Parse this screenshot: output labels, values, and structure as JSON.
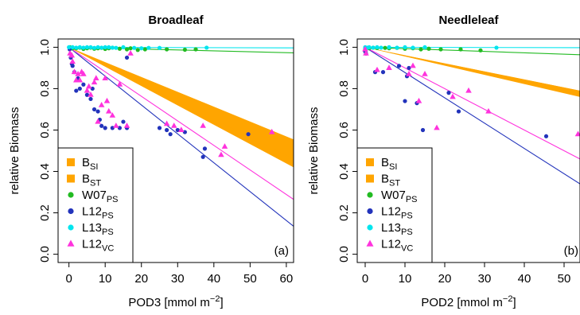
{
  "chart_data": [
    {
      "type": "scatter",
      "title": "Broadleaf",
      "panel_label": "(a)",
      "xlabel": {
        "main": "POD3 [mmol m",
        "sup": "−2",
        "end": "]"
      },
      "ylabel": "relative Biomass",
      "xlim": [
        -3,
        62
      ],
      "ylim": [
        -0.04,
        1.04
      ],
      "xticks": [
        0,
        10,
        20,
        30,
        40,
        50,
        60
      ],
      "yticks": [
        0.0,
        0.2,
        0.4,
        0.6,
        0.8,
        1.0
      ],
      "ytick_labels": [
        "0.0",
        "0.2",
        "0.4",
        "0.6",
        "0.8",
        "1.0"
      ],
      "legend_position": "bottom-left",
      "bands": [
        {
          "name": "B",
          "sub": "SI",
          "color": "#ffa500",
          "points": [
            [
              0,
              1.0
            ],
            [
              62,
              0.555
            ],
            [
              62,
              0.42
            ],
            [
              0,
              1.0
            ]
          ]
        },
        {
          "name": "B",
          "sub": "ST",
          "color": "#ffa500",
          "points": [
            [
              0,
              1.0
            ],
            [
              62,
              0.46
            ],
            [
              62,
              0.42
            ],
            [
              0,
              1.0
            ]
          ]
        }
      ],
      "lines": [
        {
          "series": "W07",
          "color": "#22bb22",
          "x": [
            0,
            62
          ],
          "y": [
            1.0,
            0.973
          ]
        },
        {
          "series": "L12",
          "color": "#2233bb",
          "x": [
            0,
            62
          ],
          "y": [
            1.0,
            0.135
          ]
        },
        {
          "series": "L13",
          "color": "#00e5ee",
          "x": [
            0,
            62
          ],
          "y": [
            1.0,
            0.997
          ]
        },
        {
          "series": "L12VC",
          "color": "#ff33dd",
          "x": [
            0,
            62
          ],
          "y": [
            1.0,
            0.265
          ]
        }
      ],
      "series": [
        {
          "name": "W07",
          "sub": "PS",
          "color": "#22bb22",
          "marker": "circle",
          "points": [
            [
              0.3,
              1.0
            ],
            [
              1,
              0.995
            ],
            [
              2,
              0.995
            ],
            [
              3,
              0.998
            ],
            [
              4,
              0.992
            ],
            [
              5,
              0.995
            ],
            [
              6,
              0.998
            ],
            [
              7,
              0.993
            ],
            [
              8,
              0.995
            ],
            [
              9,
              0.997
            ],
            [
              10,
              0.992
            ],
            [
              11,
              0.995
            ],
            [
              12,
              0.998
            ],
            [
              14,
              0.993
            ],
            [
              16,
              0.99
            ],
            [
              17,
              0.995
            ],
            [
              19,
              0.987
            ],
            [
              21,
              0.99
            ],
            [
              27,
              0.99
            ],
            [
              32,
              0.988
            ],
            [
              35,
              0.99
            ]
          ]
        },
        {
          "name": "L12",
          "sub": "PS",
          "color": "#2233bb",
          "marker": "circle",
          "points": [
            [
              0.2,
              0.99
            ],
            [
              0.5,
              0.95
            ],
            [
              0.8,
              0.92
            ],
            [
              1,
              0.91
            ],
            [
              1.5,
              0.88
            ],
            [
              2,
              0.79
            ],
            [
              2.5,
              0.85
            ],
            [
              3,
              0.8
            ],
            [
              4,
              0.82
            ],
            [
              5,
              0.77
            ],
            [
              6,
              0.75
            ],
            [
              6.5,
              0.8
            ],
            [
              7,
              0.7
            ],
            [
              8,
              0.69
            ],
            [
              8.5,
              0.65
            ],
            [
              9,
              0.62
            ],
            [
              10,
              0.61
            ],
            [
              12,
              0.61
            ],
            [
              14,
              0.61
            ],
            [
              15,
              0.64
            ],
            [
              16,
              0.61
            ],
            [
              16,
              0.95
            ],
            [
              25,
              0.61
            ],
            [
              27,
              0.6
            ],
            [
              28,
              0.58
            ],
            [
              30,
              0.6
            ],
            [
              32,
              0.59
            ],
            [
              37,
              0.47
            ],
            [
              37.5,
              0.51
            ],
            [
              49.5,
              0.58
            ]
          ]
        },
        {
          "name": "L13",
          "sub": "PS",
          "color": "#00e5ee",
          "marker": "circle",
          "points": [
            [
              0,
              1.0
            ],
            [
              1,
              1.0
            ],
            [
              2,
              0.998
            ],
            [
              3,
              1.0
            ],
            [
              4,
              0.998
            ],
            [
              5,
              1.0
            ],
            [
              6,
              1.0
            ],
            [
              7,
              0.997
            ],
            [
              8,
              1.0
            ],
            [
              9,
              0.998
            ],
            [
              10,
              1.0
            ],
            [
              11,
              1.0
            ],
            [
              12,
              0.998
            ],
            [
              13,
              0.997
            ],
            [
              15,
              1.0
            ],
            [
              18,
              0.997
            ],
            [
              20,
              0.995
            ],
            [
              22,
              0.997
            ],
            [
              25,
              0.997
            ],
            [
              38,
              0.998
            ]
          ]
        },
        {
          "name": "L12",
          "sub": "VC",
          "color": "#ff33dd",
          "marker": "triangle",
          "points": [
            [
              0.3,
              0.97
            ],
            [
              0.8,
              0.96
            ],
            [
              1,
              0.93
            ],
            [
              1.5,
              0.88
            ],
            [
              2,
              0.84
            ],
            [
              2.5,
              0.87
            ],
            [
              3,
              0.84
            ],
            [
              3.5,
              0.88
            ],
            [
              4,
              0.87
            ],
            [
              5,
              0.79
            ],
            [
              5.5,
              0.81
            ],
            [
              6,
              0.77
            ],
            [
              7,
              0.83
            ],
            [
              7.5,
              0.85
            ],
            [
              8,
              0.64
            ],
            [
              9,
              0.72
            ],
            [
              10,
              0.85
            ],
            [
              10.5,
              0.74
            ],
            [
              11,
              0.69
            ],
            [
              12,
              0.67
            ],
            [
              13,
              0.62
            ],
            [
              14,
              0.82
            ],
            [
              16,
              0.62
            ],
            [
              17,
              0.97
            ],
            [
              27,
              0.63
            ],
            [
              29,
              0.62
            ],
            [
              31,
              0.6
            ],
            [
              37,
              0.62
            ],
            [
              42,
              0.48
            ],
            [
              43,
              0.52
            ],
            [
              56,
              0.59
            ]
          ]
        }
      ]
    },
    {
      "type": "scatter",
      "title": "Needleleaf",
      "panel_label": "(b)",
      "xlabel": {
        "main": "POD2 [mmol m",
        "sup": "−2",
        "end": "]"
      },
      "ylabel": "relative Biomass",
      "xlim": [
        -2,
        54
      ],
      "ylim": [
        -0.04,
        1.04
      ],
      "xticks": [
        0,
        10,
        20,
        30,
        40,
        50
      ],
      "yticks": [
        0.0,
        0.2,
        0.4,
        0.6,
        0.8,
        1.0
      ],
      "ytick_labels": [
        "0.0",
        "0.2",
        "0.4",
        "0.6",
        "0.8",
        "1.0"
      ],
      "legend_position": "bottom-left",
      "bands": [
        {
          "name": "B",
          "sub": "SI",
          "color": "#ffa500",
          "points": [
            [
              0,
              1.0
            ],
            [
              54,
              0.79
            ],
            [
              54,
              0.76
            ],
            [
              0,
              1.0
            ]
          ]
        },
        {
          "name": "B",
          "sub": "ST",
          "color": "#ffa500",
          "points": [
            [
              0,
              1.0
            ],
            [
              54,
              0.79
            ],
            [
              54,
              0.765
            ],
            [
              0,
              1.0
            ]
          ]
        }
      ],
      "lines": [
        {
          "series": "W07",
          "color": "#22bb22",
          "x": [
            0,
            54
          ],
          "y": [
            1.0,
            0.964
          ]
        },
        {
          "series": "L12",
          "color": "#2233bb",
          "x": [
            0,
            54
          ],
          "y": [
            1.0,
            0.34
          ]
        },
        {
          "series": "L13",
          "color": "#00e5ee",
          "x": [
            0,
            54
          ],
          "y": [
            1.0,
            0.998
          ]
        },
        {
          "series": "L12VC",
          "color": "#ff33dd",
          "x": [
            0,
            54
          ],
          "y": [
            1.0,
            0.46
          ]
        }
      ],
      "series": [
        {
          "name": "W07",
          "sub": "PS",
          "color": "#22bb22",
          "marker": "circle",
          "points": [
            [
              0,
              0.99
            ],
            [
              1,
              0.995
            ],
            [
              2,
              0.998
            ],
            [
              3,
              0.996
            ],
            [
              5,
              0.997
            ],
            [
              6,
              0.995
            ],
            [
              8,
              0.997
            ],
            [
              10,
              0.993
            ],
            [
              12,
              0.995
            ],
            [
              14,
              0.99
            ],
            [
              16,
              0.993
            ],
            [
              19,
              0.99
            ],
            [
              24,
              0.99
            ],
            [
              29,
              0.985
            ]
          ]
        },
        {
          "name": "L12",
          "sub": "PS",
          "color": "#2233bb",
          "marker": "circle",
          "points": [
            [
              0,
              0.98
            ],
            [
              0.2,
              0.97
            ],
            [
              2.5,
              0.88
            ],
            [
              4.5,
              0.88
            ],
            [
              8.5,
              0.91
            ],
            [
              10,
              0.74
            ],
            [
              10.5,
              0.86
            ],
            [
              11,
              0.9
            ],
            [
              13,
              0.73
            ],
            [
              14.5,
              0.6
            ],
            [
              21,
              0.78
            ],
            [
              23.5,
              0.69
            ],
            [
              45.5,
              0.57
            ]
          ]
        },
        {
          "name": "L13",
          "sub": "PS",
          "color": "#00e5ee",
          "marker": "circle",
          "points": [
            [
              0,
              1.0
            ],
            [
              0.5,
              0.998
            ],
            [
              1,
              1.0
            ],
            [
              2,
              0.998
            ],
            [
              3,
              1.0
            ],
            [
              4,
              0.998
            ],
            [
              6,
              1.0
            ],
            [
              8,
              0.998
            ],
            [
              10,
              1.0
            ],
            [
              12,
              0.998
            ],
            [
              15,
              1.0
            ],
            [
              33,
              0.998
            ]
          ]
        },
        {
          "name": "L12",
          "sub": "VC",
          "color": "#ff33dd",
          "marker": "triangle",
          "points": [
            [
              0,
              0.99
            ],
            [
              0.2,
              0.97
            ],
            [
              3,
              0.89
            ],
            [
              6,
              0.9
            ],
            [
              11,
              0.87
            ],
            [
              12,
              0.91
            ],
            [
              13.5,
              0.74
            ],
            [
              15,
              0.87
            ],
            [
              18,
              0.61
            ],
            [
              22,
              0.76
            ],
            [
              26,
              0.79
            ],
            [
              31,
              0.69
            ],
            [
              53.5,
              0.58
            ]
          ]
        }
      ]
    }
  ]
}
